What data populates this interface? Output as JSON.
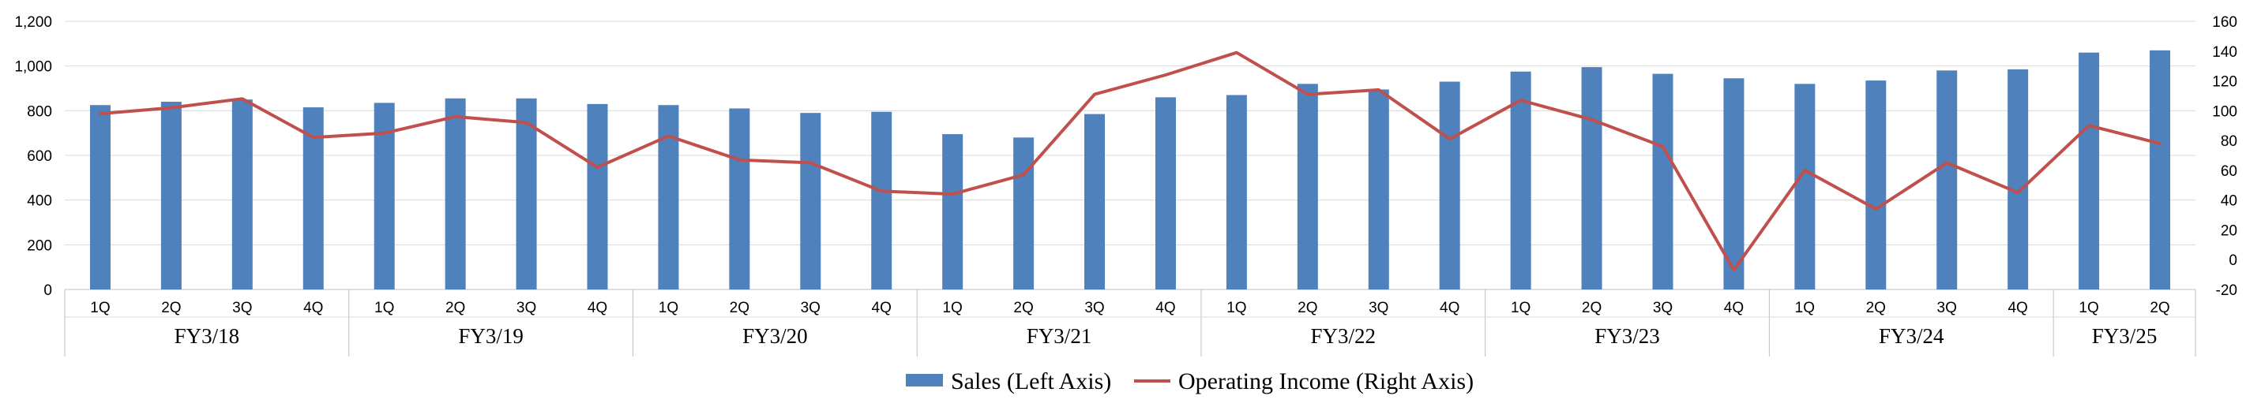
{
  "chart_data": {
    "type": "bar+line",
    "title": "",
    "groups": [
      {
        "label": "FY3/18",
        "quarters": [
          "1Q",
          "2Q",
          "3Q",
          "4Q"
        ]
      },
      {
        "label": "FY3/19",
        "quarters": [
          "1Q",
          "2Q",
          "3Q",
          "4Q"
        ]
      },
      {
        "label": "FY3/20",
        "quarters": [
          "1Q",
          "2Q",
          "3Q",
          "4Q"
        ]
      },
      {
        "label": "FY3/21",
        "quarters": [
          "1Q",
          "2Q",
          "3Q",
          "4Q"
        ]
      },
      {
        "label": "FY3/22",
        "quarters": [
          "1Q",
          "2Q",
          "3Q",
          "4Q"
        ]
      },
      {
        "label": "FY3/23",
        "quarters": [
          "1Q",
          "2Q",
          "3Q",
          "4Q"
        ]
      },
      {
        "label": "FY3/24",
        "quarters": [
          "1Q",
          "2Q",
          "3Q",
          "4Q"
        ]
      },
      {
        "label": "FY3/25",
        "quarters": [
          "1Q",
          "2Q"
        ]
      }
    ],
    "series": [
      {
        "name": "Sales (Left Axis)",
        "kind": "bar",
        "axis": "left",
        "color": "#4f81bd",
        "values": [
          825,
          840,
          850,
          815,
          835,
          855,
          855,
          830,
          825,
          810,
          790,
          795,
          695,
          680,
          785,
          860,
          870,
          920,
          895,
          930,
          975,
          995,
          965,
          945,
          920,
          935,
          980,
          985,
          1060,
          1070
        ]
      },
      {
        "name": "Operating Income (Right Axis)",
        "kind": "line",
        "axis": "right",
        "color": "#c0504d",
        "values": [
          98,
          102,
          108,
          82,
          85,
          96,
          92,
          62,
          83,
          67,
          65,
          46,
          44,
          57,
          111,
          124,
          139,
          111,
          114,
          81,
          107,
          94,
          76,
          -7,
          60,
          34,
          65,
          45,
          90,
          78
        ]
      }
    ],
    "y_left": {
      "min": 0,
      "max": 1200,
      "step": 200,
      "ticks": [
        "0",
        "200",
        "400",
        "600",
        "800",
        "1,000",
        "1,200"
      ]
    },
    "y_right": {
      "min": -20,
      "max": 160,
      "step": 20,
      "ticks": [
        "-20",
        "0",
        "20",
        "40",
        "60",
        "80",
        "100",
        "120",
        "140",
        "160"
      ]
    },
    "grid": true,
    "legend_position": "bottom"
  }
}
